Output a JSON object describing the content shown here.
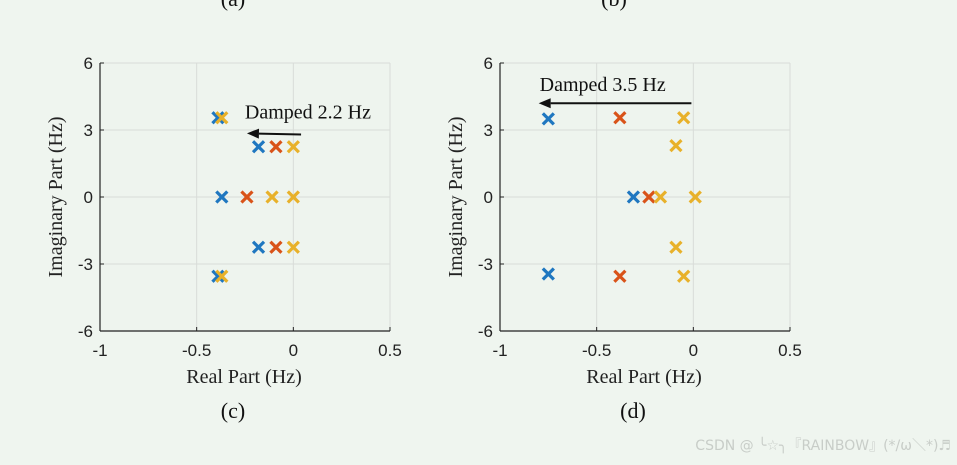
{
  "header_labels": [
    "(a)",
    "(b)"
  ],
  "colors": {
    "blue": "#1f77c0",
    "red": "#d95319",
    "yellow": "#e8b12a",
    "grid": "#d8dcd8",
    "axis": "#222222",
    "arrow": "#111111"
  },
  "chart_data": [
    {
      "type": "scatter",
      "caption": "(c)",
      "xlabel": "Real Part (Hz)",
      "ylabel": "Imaginary Part (Hz)",
      "xlim": [
        -1,
        0.5
      ],
      "ylim": [
        -6,
        6
      ],
      "xticks": [
        -1,
        -0.5,
        0,
        0.5
      ],
      "xtick_labels": [
        "-1",
        "-0.5",
        "0",
        "0.5"
      ],
      "yticks": [
        6,
        3,
        0,
        -3,
        -6
      ],
      "ytick_labels": [
        "6",
        "3",
        "0",
        "-3",
        "-6"
      ],
      "annotation": {
        "text": "Damped 2.2 Hz",
        "from": [
          0.04,
          2.8
        ],
        "to": [
          -0.24,
          2.85
        ]
      },
      "series": [
        {
          "name": "blue",
          "color": "#1f77c0",
          "points": [
            [
              -0.39,
              3.55
            ],
            [
              -0.18,
              2.25
            ],
            [
              -0.37,
              0.0
            ],
            [
              -0.18,
              -2.25
            ],
            [
              -0.39,
              -3.55
            ]
          ]
        },
        {
          "name": "red",
          "color": "#d95319",
          "points": [
            [
              -0.09,
              2.25
            ],
            [
              -0.24,
              0.0
            ],
            [
              -0.09,
              -2.25
            ]
          ]
        },
        {
          "name": "yellow",
          "color": "#e8b12a",
          "points": [
            [
              -0.37,
              3.55
            ],
            [
              0.0,
              2.25
            ],
            [
              -0.11,
              0.0
            ],
            [
              0.0,
              0.0
            ],
            [
              0.0,
              -2.25
            ],
            [
              -0.37,
              -3.55
            ]
          ]
        }
      ]
    },
    {
      "type": "scatter",
      "caption": "(d)",
      "xlabel": "Real Part (Hz)",
      "ylabel": "Imaginary Part (Hz)",
      "xlim": [
        -1,
        0.5
      ],
      "ylim": [
        -6,
        6
      ],
      "xticks": [
        -1,
        -0.5,
        0,
        0.5
      ],
      "xtick_labels": [
        "-1",
        "-0.5",
        "0",
        "0.5"
      ],
      "yticks": [
        6,
        3,
        0,
        -3,
        -6
      ],
      "ytick_labels": [
        "6",
        "3",
        "0",
        "-3",
        "-6"
      ],
      "annotation": {
        "text": "Damped 3.5 Hz",
        "from": [
          -0.01,
          4.2
        ],
        "to": [
          -0.8,
          4.2
        ]
      },
      "series": [
        {
          "name": "blue",
          "color": "#1f77c0",
          "points": [
            [
              -0.75,
              3.5
            ],
            [
              -0.31,
              0.0
            ],
            [
              -0.75,
              -3.45
            ]
          ]
        },
        {
          "name": "red",
          "color": "#d95319",
          "points": [
            [
              -0.38,
              3.55
            ],
            [
              -0.23,
              0.0
            ],
            [
              -0.38,
              -3.55
            ]
          ]
        },
        {
          "name": "yellow",
          "color": "#e8b12a",
          "points": [
            [
              -0.05,
              3.55
            ],
            [
              -0.09,
              2.3
            ],
            [
              -0.17,
              0.0
            ],
            [
              0.01,
              0.0
            ],
            [
              -0.09,
              -2.25
            ],
            [
              -0.05,
              -3.55
            ]
          ]
        }
      ]
    }
  ],
  "watermark": "CSDN @ ╰☆╮『RAINBOW』(*/ω＼*)♬"
}
